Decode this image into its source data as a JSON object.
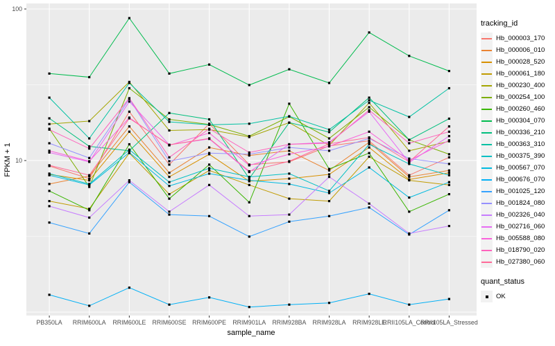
{
  "chart_data": {
    "type": "line",
    "title": "",
    "xlabel": "sample_name",
    "ylabel": "FPKM + 1",
    "y_scale": "log10",
    "ylim": [
      1,
      100
    ],
    "y_major_ticks": [
      {
        "label": "100",
        "value": 100
      },
      {
        "label": "10",
        "value": 10
      }
    ],
    "y_major_breaks": [
      100,
      10,
      1
    ],
    "y_minor_breaks": [
      31.623,
      3.1623
    ],
    "grid": true,
    "panel_bg": "#EBEBEB",
    "grid_color": "#FFFFFF",
    "tick_label_color": "#4D4D4D",
    "marker": "square",
    "marker_color": "#000000",
    "legend_title": "tracking_id",
    "legend_position": "right",
    "legend2_title": "quant_status",
    "legend2_items": [
      {
        "label": "OK",
        "shape": "square",
        "color": "#000000"
      }
    ],
    "categories": [
      "PB350LA",
      "RRIM600LA",
      "RRIM600LE",
      "RRIM600SE",
      "RRIM600PE",
      "RRIM901LA",
      "RRIM928BA",
      "RRIM928LA",
      "RRIM928LE",
      "RRII105LA_Control",
      "RRII105LA_Stressed"
    ],
    "series": [
      {
        "name": "Hb_000003_170",
        "color": "#F8766D",
        "values": [
          9.2,
          7.6,
          21.0,
          9.4,
          17.5,
          9.4,
          9.8,
          12.5,
          13.5,
          8.0,
          10.5
        ]
      },
      {
        "name": "Hb_000006_010",
        "color": "#EA8331",
        "values": [
          7.0,
          7.9,
          16.8,
          8.3,
          12.2,
          10.8,
          11.6,
          8.6,
          13.2,
          7.8,
          8.6
        ]
      },
      {
        "name": "Hb_000028_520",
        "color": "#D89000",
        "values": [
          8.1,
          7.4,
          15.5,
          7.8,
          11.0,
          7.3,
          7.6,
          8.1,
          12.2,
          7.5,
          8.3
        ]
      },
      {
        "name": "Hb_000061_180",
        "color": "#C09B00",
        "values": [
          5.4,
          4.8,
          11.2,
          6.0,
          8.6,
          6.9,
          5.6,
          5.4,
          10.6,
          7.4,
          6.9
        ]
      },
      {
        "name": "Hb_000230_400",
        "color": "#A3A500",
        "values": [
          17.4,
          18.2,
          33.0,
          15.8,
          16.0,
          14.3,
          17.8,
          12.6,
          24.0,
          11.6,
          13.4
        ]
      },
      {
        "name": "Hb_000254_100",
        "color": "#7CAE00",
        "values": [
          16.2,
          6.7,
          30.0,
          18.7,
          17.3,
          14.5,
          19.5,
          14.0,
          22.5,
          13.7,
          11.0
        ]
      },
      {
        "name": "Hb_000260_460",
        "color": "#39B600",
        "values": [
          6.3,
          4.7,
          12.8,
          5.6,
          9.4,
          5.3,
          23.7,
          8.8,
          11.2,
          4.6,
          6.0
        ]
      },
      {
        "name": "Hb_000304_070",
        "color": "#00BB4E",
        "values": [
          37.5,
          35.5,
          87.0,
          37.5,
          43.0,
          31.5,
          40.0,
          32.5,
          70.0,
          49.0,
          39.0
        ]
      },
      {
        "name": "Hb_000336_210",
        "color": "#00BF7D",
        "values": [
          19.0,
          12.4,
          11.6,
          20.6,
          18.7,
          7.6,
          17.8,
          15.4,
          26.0,
          13.7,
          18.9
        ]
      },
      {
        "name": "Hb_000363_310",
        "color": "#00C1A3",
        "values": [
          26.0,
          14.0,
          32.5,
          18.0,
          17.2,
          17.5,
          19.6,
          16.0,
          25.0,
          19.4,
          30.0
        ]
      },
      {
        "name": "Hb_000375_390",
        "color": "#00BFC4",
        "values": [
          8.2,
          7.0,
          11.8,
          7.2,
          8.9,
          7.8,
          8.2,
          6.3,
          12.8,
          9.5,
          8.0
        ]
      },
      {
        "name": "Hb_000567_070",
        "color": "#00BAE0",
        "values": [
          8.0,
          6.9,
          11.3,
          6.8,
          8.2,
          7.4,
          7.0,
          6.1,
          9.0,
          5.7,
          7.2
        ]
      },
      {
        "name": "Hb_000676_070",
        "color": "#00B0F6",
        "values": [
          1.3,
          1.1,
          1.45,
          1.12,
          1.25,
          1.08,
          1.12,
          1.15,
          1.32,
          1.12,
          1.22
        ]
      },
      {
        "name": "Hb_001025_120",
        "color": "#35A2FF",
        "values": [
          3.9,
          3.3,
          7.2,
          4.4,
          4.3,
          3.15,
          3.95,
          4.3,
          4.9,
          3.25,
          4.7
        ]
      },
      {
        "name": "Hb_001824_080",
        "color": "#9590FF",
        "values": [
          13.0,
          10.4,
          25.5,
          9.9,
          11.2,
          11.0,
          12.2,
          11.6,
          14.0,
          10.3,
          9.5
        ]
      },
      {
        "name": "Hb_002326_040",
        "color": "#C77CFF",
        "values": [
          5.0,
          4.2,
          7.4,
          4.6,
          6.9,
          4.3,
          4.4,
          7.8,
          5.2,
          3.3,
          3.7
        ]
      },
      {
        "name": "Hb_002716_060",
        "color": "#E76BF3",
        "values": [
          11.3,
          9.8,
          24.5,
          12.7,
          13.9,
          8.4,
          12.8,
          13.2,
          21.0,
          9.7,
          14.5
        ]
      },
      {
        "name": "Hb_005588_080",
        "color": "#FA62DB",
        "values": [
          11.6,
          9.9,
          19.2,
          12.6,
          15.2,
          9.3,
          11.0,
          12.4,
          15.5,
          10.0,
          13.6
        ]
      },
      {
        "name": "Hb_018790_020",
        "color": "#FF62BC",
        "values": [
          16.0,
          12.0,
          25.8,
          10.5,
          16.2,
          11.3,
          12.8,
          13.0,
          21.5,
          13.0,
          15.5
        ]
      },
      {
        "name": "Hb_027380_060",
        "color": "#FF6A98",
        "values": [
          9.3,
          8.0,
          19.0,
          12.7,
          14.0,
          8.5,
          9.9,
          12.9,
          14.2,
          9.8,
          16.8
        ]
      }
    ]
  }
}
